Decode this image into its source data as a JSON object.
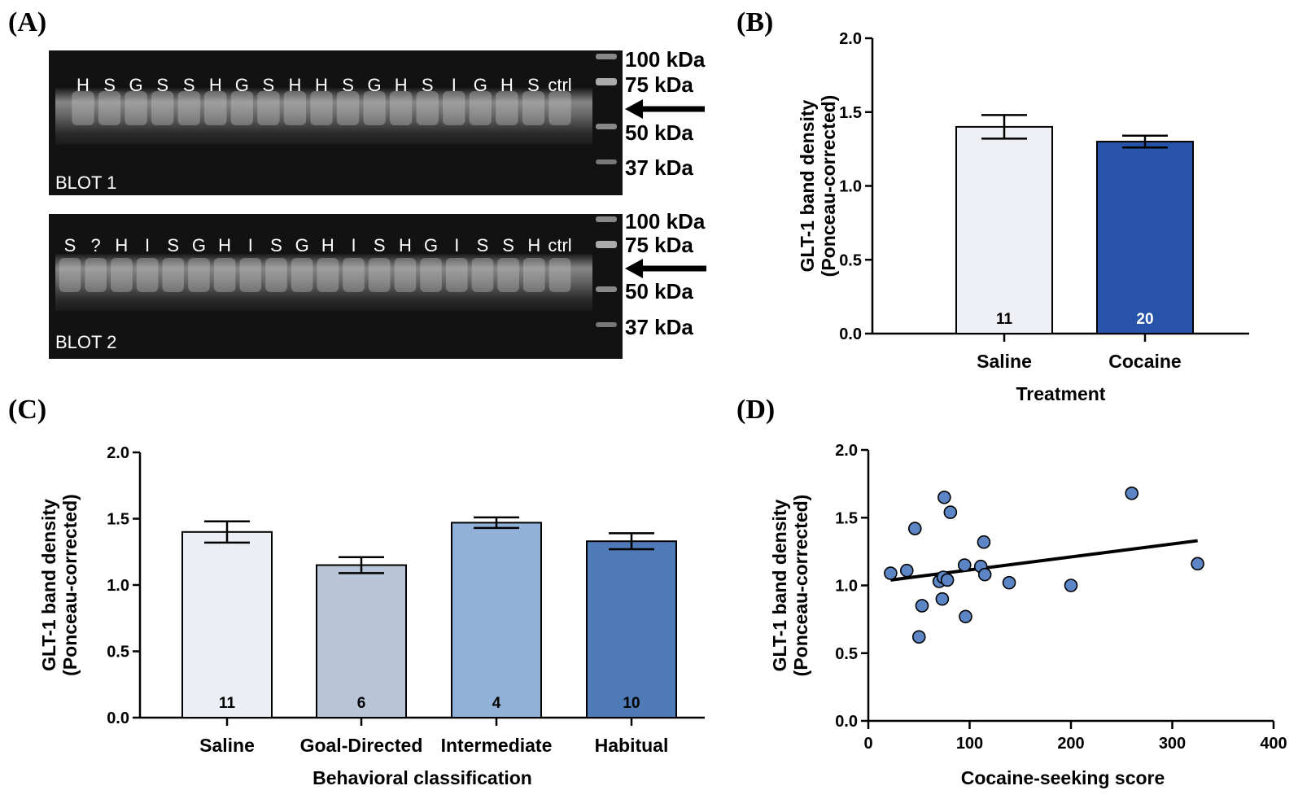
{
  "panels": {
    "a": "(A)",
    "b": "(B)",
    "c": "(C)",
    "d": "(D)"
  },
  "blots": [
    {
      "name": "BLOT 1",
      "lanes": [
        "H",
        "S",
        "G",
        "S",
        "S",
        "H",
        "G",
        "S",
        "H",
        "H",
        "S",
        "G",
        "H",
        "S",
        "I",
        "G",
        "H",
        "S",
        "ctrl"
      ],
      "markers": [
        "100 kDa",
        "75 kDa",
        "50 kDa",
        "37 kDa"
      ]
    },
    {
      "name": "BLOT 2",
      "lanes": [
        "S",
        "?",
        "H",
        "I",
        "S",
        "G",
        "H",
        "I",
        "S",
        "G",
        "H",
        "I",
        "S",
        "H",
        "G",
        "I",
        "S",
        "S",
        "H",
        "ctrl"
      ],
      "markers": [
        "100 kDa",
        "75 kDa",
        "50 kDa",
        "37 kDa"
      ]
    }
  ],
  "chart_data": [
    {
      "panel": "B",
      "type": "bar",
      "categories": [
        "Saline",
        "Cocaine"
      ],
      "values": [
        1.4,
        1.3
      ],
      "errors": [
        0.08,
        0.04
      ],
      "n": [
        "11",
        "20"
      ],
      "bar_colors": [
        "#eeeff5",
        "#2753a8"
      ],
      "n_colors": [
        "#000000",
        "#ffffff"
      ],
      "title": "",
      "xlabel": "Treatment",
      "ylabel": "GLT-1 band density",
      "ylabel2": "(Ponceau-corrected)",
      "ylim": [
        0,
        2.0
      ],
      "yticks": [
        "0.0",
        "0.5",
        "1.0",
        "1.5",
        "2.0"
      ]
    },
    {
      "panel": "C",
      "type": "bar",
      "categories": [
        "Saline",
        "Goal-Directed",
        "Intermediate",
        "Habitual"
      ],
      "values": [
        1.4,
        1.15,
        1.47,
        1.33
      ],
      "errors": [
        0.08,
        0.06,
        0.04,
        0.06
      ],
      "n": [
        "11",
        "6",
        "4",
        "10"
      ],
      "bar_colors": [
        "#eceef5",
        "#b8c4d8",
        "#91b1d8",
        "#4e7ab7"
      ],
      "n_colors": [
        "#000000",
        "#000000",
        "#000000",
        "#000000"
      ],
      "title": "",
      "xlabel": "Behavioral classification",
      "ylabel": "GLT-1 band density",
      "ylabel2": "(Ponceau-corrected)",
      "ylim": [
        0,
        2.0
      ],
      "yticks": [
        "0.0",
        "0.5",
        "1.0",
        "1.5",
        "2.0"
      ]
    },
    {
      "panel": "D",
      "type": "scatter",
      "points": [
        {
          "x": 22,
          "y": 1.09
        },
        {
          "x": 38,
          "y": 1.11
        },
        {
          "x": 46,
          "y": 1.42
        },
        {
          "x": 50,
          "y": 0.62
        },
        {
          "x": 53,
          "y": 0.85
        },
        {
          "x": 70,
          "y": 1.03
        },
        {
          "x": 73,
          "y": 0.9
        },
        {
          "x": 74,
          "y": 1.06
        },
        {
          "x": 75,
          "y": 1.65
        },
        {
          "x": 78,
          "y": 1.04
        },
        {
          "x": 81,
          "y": 1.54
        },
        {
          "x": 95,
          "y": 1.15
        },
        {
          "x": 96,
          "y": 0.77
        },
        {
          "x": 111,
          "y": 1.14
        },
        {
          "x": 114,
          "y": 1.32
        },
        {
          "x": 115,
          "y": 1.08
        },
        {
          "x": 139,
          "y": 1.02
        },
        {
          "x": 200,
          "y": 1.0
        },
        {
          "x": 260,
          "y": 1.68
        },
        {
          "x": 325,
          "y": 1.16
        }
      ],
      "fit_line": {
        "x": [
          22,
          325
        ],
        "y": [
          1.04,
          1.33
        ]
      },
      "point_color": "#5b85c5",
      "title": "",
      "xlabel": "Cocaine-seeking score",
      "ylabel": "GLT-1 band density",
      "ylabel2": "(Ponceau-corrected)",
      "xlim": [
        0,
        400
      ],
      "ylim": [
        0,
        2.0
      ],
      "xticks": [
        "0",
        "100",
        "200",
        "300",
        "400"
      ],
      "yticks": [
        "0.0",
        "0.5",
        "1.0",
        "1.5",
        "2.0"
      ]
    }
  ]
}
